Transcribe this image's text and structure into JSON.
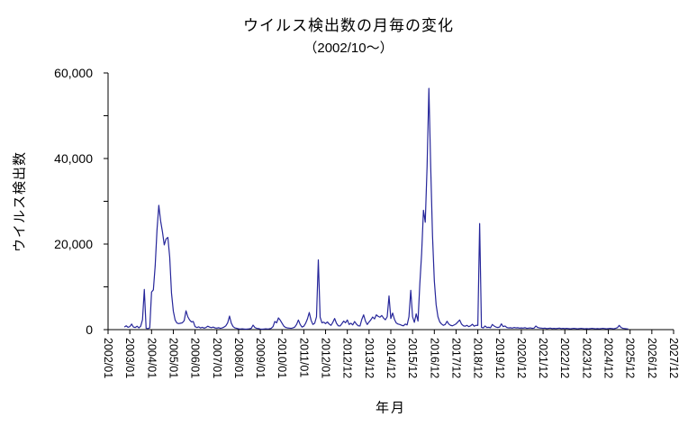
{
  "chart_data": {
    "type": "line",
    "title": "ウイルス検出数の月毎の変化",
    "subtitle": "（2002/10～）",
    "xlabel": "年月",
    "ylabel": "ウイルス検出数",
    "ylim": [
      0,
      60000
    ],
    "grid": false,
    "legend": "none",
    "line_color": "#26269a",
    "axis_color": "#000000",
    "y_ticks": [
      0,
      10000,
      20000,
      30000,
      40000,
      50000,
      60000
    ],
    "y_tick_labels": [
      "0",
      "",
      "20,000",
      "",
      "40,000",
      "",
      "60,000"
    ],
    "x_tick_labels": [
      "2002/01",
      "2003/01",
      "2004/01",
      "2005/01",
      "2006/01",
      "2007/01",
      "2008/01",
      "2009/01",
      "2010/01",
      "2011/01",
      "2012/01",
      "2012/12",
      "2013/12",
      "2014/12",
      "2015/12",
      "2016/12",
      "2017/12",
      "2018/12",
      "2019/12",
      "2020/12",
      "2021/12",
      "2022/12",
      "2023/12",
      "2024/12",
      "2025/12",
      "2026/12",
      "2027/12"
    ],
    "months_per_tick": 12,
    "series": [
      {
        "name": "ウイルス検出数",
        "start": "2002/10",
        "end": "2025/12",
        "values": [
          600,
          900,
          550,
          700,
          1300,
          600,
          500,
          800,
          400,
          800,
          2300,
          9400,
          300,
          250,
          400,
          8800,
          9300,
          14900,
          23300,
          29050,
          25400,
          22900,
          19800,
          21200,
          21550,
          17000,
          8550,
          4350,
          2250,
          1550,
          1400,
          1500,
          1600,
          2100,
          4400,
          3000,
          2250,
          1800,
          1900,
          700,
          500,
          650,
          400,
          550,
          350,
          500,
          800,
          600,
          450,
          600,
          400,
          350,
          450,
          300,
          400,
          600,
          900,
          1600,
          3160,
          1500,
          700,
          400,
          300,
          200,
          150,
          200,
          150,
          100,
          150,
          200,
          300,
          1050,
          500,
          300,
          250,
          150,
          100,
          150,
          200,
          150,
          200,
          300,
          700,
          1900,
          1600,
          2740,
          2200,
          1500,
          800,
          500,
          400,
          350,
          300,
          400,
          600,
          1200,
          2250,
          1200,
          600,
          800,
          1500,
          2500,
          4000,
          2200,
          1200,
          1500,
          3000,
          16300,
          2900,
          1600,
          1750,
          1400,
          1800,
          1300,
          1000,
          1700,
          2600,
          1500,
          900,
          850,
          1400,
          2000,
          1600,
          2250,
          1200,
          1500,
          1100,
          1900,
          1300,
          900,
          850,
          2400,
          3450,
          2000,
          1200,
          1800,
          2300,
          2950,
          2500,
          3450,
          3100,
          2900,
          3300,
          2700,
          2300,
          3000,
          7870,
          2600,
          3870,
          2400,
          1550,
          1300,
          1200,
          1000,
          900,
          1300,
          1100,
          3000,
          9200,
          3000,
          1700,
          3700,
          2000,
          10700,
          17800,
          27900,
          25100,
          38100,
          56400,
          38100,
          21950,
          11400,
          5800,
          3000,
          1800,
          1300,
          1000,
          1200,
          1950,
          1300,
          1000,
          900,
          1100,
          1350,
          1800,
          2250,
          1300,
          900,
          800,
          1000,
          700,
          900,
          1250,
          800,
          1000,
          1000,
          24800,
          550,
          400,
          850,
          500,
          550,
          450,
          1200,
          850,
          600,
          500,
          600,
          1350,
          700,
          850,
          500,
          400,
          450,
          350,
          500,
          400,
          450,
          350,
          400,
          350,
          450,
          300,
          350,
          400,
          300,
          350,
          850,
          500,
          400,
          350,
          300,
          350,
          250,
          300,
          350,
          250,
          300,
          250,
          300,
          350,
          250,
          300,
          250,
          300,
          250,
          200,
          250,
          300,
          250,
          200,
          250,
          300,
          250,
          200,
          250,
          200,
          250,
          300,
          250,
          200,
          250,
          200,
          250,
          300,
          250,
          200,
          250,
          300,
          250,
          200,
          300,
          450,
          990,
          500,
          300,
          250,
          200,
          150
        ]
      }
    ]
  }
}
